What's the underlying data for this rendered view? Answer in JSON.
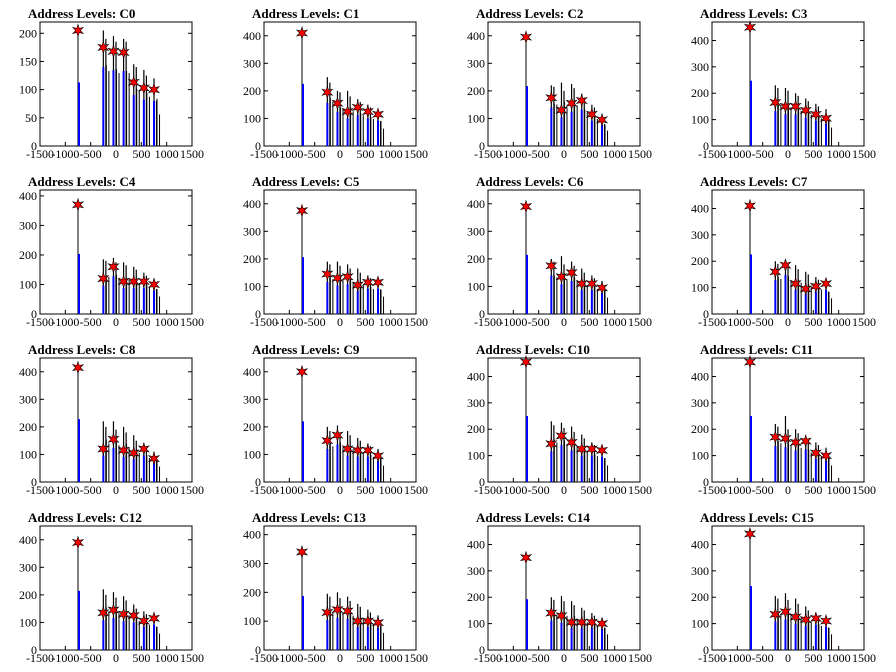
{
  "colors": {
    "histogram_bin": "#000000",
    "histogram_peak": "#0000ff",
    "peak_marker": "#ff0000",
    "axes": "#000000"
  },
  "chart_data": [
    {
      "type": "bar",
      "title": "Address Levels: C0",
      "xlim": [
        -1500,
        1500
      ],
      "xticks": [
        -1500,
        -1000,
        -500,
        0,
        500,
        1000,
        1500
      ],
      "ylim": [
        0,
        220
      ],
      "yticks": [
        0,
        50,
        100,
        150,
        200
      ],
      "peaks": {
        "x": [
          -750,
          -250,
          -50,
          150,
          350,
          550,
          750
        ],
        "y": [
          205,
          175,
          168,
          166,
          113,
          103,
          100
        ]
      },
      "bins": {
        "x": [
          -250,
          -200,
          -50,
          0,
          150,
          200,
          350,
          400,
          550,
          600,
          750,
          800
        ],
        "y": [
          205,
          190,
          195,
          185,
          190,
          185,
          145,
          140,
          135,
          125,
          120,
          80
        ]
      }
    },
    {
      "type": "bar",
      "title": "Address Levels: C1",
      "xlim": [
        -1500,
        1500
      ],
      "xticks": [
        -1500,
        -1000,
        -500,
        0,
        500,
        1000,
        1500
      ],
      "ylim": [
        0,
        450
      ],
      "yticks": [
        0,
        100,
        200,
        300,
        400
      ],
      "peaks": {
        "x": [
          -750,
          -250,
          -50,
          150,
          350,
          550,
          750
        ],
        "y": [
          410,
          195,
          155,
          125,
          140,
          125,
          115
        ]
      },
      "bins": {
        "x": [
          -250,
          -200,
          -50,
          0,
          150,
          200,
          350,
          400,
          550,
          600,
          750,
          800
        ],
        "y": [
          250,
          230,
          200,
          195,
          200,
          180,
          170,
          160,
          150,
          140,
          130,
          90
        ]
      }
    },
    {
      "type": "bar",
      "title": "Address Levels: C2",
      "xlim": [
        -1500,
        1500
      ],
      "xticks": [
        -1500,
        -1000,
        -500,
        0,
        500,
        1000,
        1500
      ],
      "ylim": [
        0,
        450
      ],
      "yticks": [
        0,
        100,
        200,
        300,
        400
      ],
      "peaks": {
        "x": [
          -750,
          -250,
          -50,
          150,
          350,
          550,
          750
        ],
        "y": [
          395,
          175,
          130,
          155,
          165,
          115,
          95
        ]
      },
      "bins": {
        "x": [
          -250,
          -200,
          -50,
          0,
          150,
          200,
          350,
          400,
          550,
          600,
          750,
          800
        ],
        "y": [
          220,
          215,
          230,
          200,
          225,
          210,
          190,
          175,
          150,
          140,
          110,
          80
        ]
      }
    },
    {
      "type": "bar",
      "title": "Address Levels: C3",
      "xlim": [
        -1500,
        1500
      ],
      "xticks": [
        -1500,
        -1000,
        -500,
        0,
        500,
        1000,
        1500
      ],
      "ylim": [
        0,
        470
      ],
      "yticks": [
        0,
        100,
        200,
        300,
        400
      ],
      "peaks": {
        "x": [
          -750,
          -250,
          -50,
          150,
          350,
          550,
          750
        ],
        "y": [
          450,
          165,
          150,
          150,
          135,
          120,
          105
        ]
      },
      "bins": {
        "x": [
          -250,
          -200,
          -50,
          0,
          150,
          200,
          350,
          400,
          550,
          600,
          750,
          800
        ],
        "y": [
          230,
          220,
          220,
          210,
          200,
          190,
          180,
          170,
          160,
          150,
          140,
          100
        ]
      }
    },
    {
      "type": "bar",
      "title": "Address Levels: C4",
      "xlim": [
        -1500,
        1500
      ],
      "xticks": [
        -1500,
        -1000,
        -500,
        0,
        500,
        1000,
        1500
      ],
      "ylim": [
        0,
        420
      ],
      "yticks": [
        0,
        100,
        200,
        300,
        400
      ],
      "peaks": {
        "x": [
          -750,
          -250,
          -50,
          150,
          350,
          550,
          750
        ],
        "y": [
          370,
          120,
          160,
          110,
          110,
          110,
          100
        ]
      },
      "bins": {
        "x": [
          -250,
          -200,
          -50,
          0,
          150,
          200,
          350,
          400,
          550,
          600,
          750,
          800
        ],
        "y": [
          185,
          180,
          190,
          175,
          175,
          165,
          160,
          150,
          140,
          130,
          120,
          85
        ]
      }
    },
    {
      "type": "bar",
      "title": "Address Levels: C5",
      "xlim": [
        -1500,
        1500
      ],
      "xticks": [
        -1500,
        -1000,
        -500,
        0,
        500,
        1000,
        1500
      ],
      "ylim": [
        0,
        450
      ],
      "yticks": [
        0,
        100,
        200,
        300,
        400
      ],
      "peaks": {
        "x": [
          -750,
          -250,
          -50,
          150,
          350,
          550,
          750
        ],
        "y": [
          375,
          145,
          130,
          135,
          105,
          115,
          115
        ]
      },
      "bins": {
        "x": [
          -250,
          -200,
          -50,
          0,
          150,
          200,
          350,
          400,
          550,
          600,
          750,
          800
        ],
        "y": [
          190,
          180,
          190,
          175,
          180,
          165,
          165,
          150,
          140,
          130,
          125,
          90
        ]
      }
    },
    {
      "type": "bar",
      "title": "Address Levels: C6",
      "xlim": [
        -1500,
        1500
      ],
      "xticks": [
        -1500,
        -1000,
        -500,
        0,
        500,
        1000,
        1500
      ],
      "ylim": [
        0,
        450
      ],
      "yticks": [
        0,
        100,
        200,
        300,
        400
      ],
      "peaks": {
        "x": [
          -750,
          -250,
          -50,
          150,
          350,
          550,
          750
        ],
        "y": [
          390,
          175,
          135,
          150,
          110,
          110,
          95
        ]
      },
      "bins": {
        "x": [
          -250,
          -200,
          -50,
          0,
          150,
          200,
          350,
          400,
          550,
          600,
          750,
          800
        ],
        "y": [
          200,
          190,
          210,
          180,
          190,
          175,
          165,
          150,
          140,
          130,
          120,
          85
        ]
      }
    },
    {
      "type": "bar",
      "title": "Address Levels: C7",
      "xlim": [
        -1500,
        1500
      ],
      "xticks": [
        -1500,
        -1000,
        -500,
        0,
        500,
        1000,
        1500
      ],
      "ylim": [
        0,
        470
      ],
      "yticks": [
        0,
        100,
        200,
        300,
        400
      ],
      "peaks": {
        "x": [
          -750,
          -250,
          -50,
          150,
          350,
          550,
          750
        ],
        "y": [
          410,
          160,
          185,
          115,
          95,
          105,
          115
        ]
      },
      "bins": {
        "x": [
          -250,
          -200,
          -50,
          0,
          150,
          200,
          350,
          400,
          550,
          600,
          750,
          800
        ],
        "y": [
          200,
          190,
          205,
          185,
          185,
          170,
          160,
          150,
          140,
          130,
          120,
          85
        ]
      }
    },
    {
      "type": "bar",
      "title": "Address Levels: C8",
      "xlim": [
        -1500,
        1500
      ],
      "xticks": [
        -1500,
        -1000,
        -500,
        0,
        500,
        1000,
        1500
      ],
      "ylim": [
        0,
        450
      ],
      "yticks": [
        0,
        100,
        200,
        300,
        400
      ],
      "peaks": {
        "x": [
          -750,
          -250,
          -50,
          150,
          350,
          550,
          750
        ],
        "y": [
          415,
          120,
          155,
          115,
          105,
          120,
          85
        ]
      },
      "bins": {
        "x": [
          -250,
          -200,
          -50,
          0,
          150,
          200,
          350,
          400,
          550,
          600,
          750,
          800
        ],
        "y": [
          220,
          200,
          220,
          190,
          200,
          180,
          170,
          150,
          140,
          125,
          110,
          80
        ]
      }
    },
    {
      "type": "bar",
      "title": "Address Levels: C9",
      "xlim": [
        -1500,
        1500
      ],
      "xticks": [
        -1500,
        -1000,
        -500,
        0,
        500,
        1000,
        1500
      ],
      "ylim": [
        0,
        450
      ],
      "yticks": [
        0,
        100,
        200,
        300,
        400
      ],
      "peaks": {
        "x": [
          -750,
          -250,
          -50,
          150,
          350,
          550,
          750
        ],
        "y": [
          400,
          150,
          170,
          120,
          115,
          115,
          95
        ]
      },
      "bins": {
        "x": [
          -250,
          -200,
          -50,
          0,
          150,
          200,
          350,
          400,
          550,
          600,
          750,
          800
        ],
        "y": [
          200,
          185,
          205,
          180,
          185,
          170,
          160,
          150,
          140,
          130,
          120,
          85
        ]
      }
    },
    {
      "type": "bar",
      "title": "Address Levels: C10",
      "xlim": [
        -1500,
        1500
      ],
      "xticks": [
        -1500,
        -1000,
        -500,
        0,
        500,
        1000,
        1500
      ],
      "ylim": [
        0,
        470
      ],
      "yticks": [
        0,
        100,
        200,
        300,
        400
      ],
      "peaks": {
        "x": [
          -750,
          -250,
          -50,
          150,
          350,
          550,
          750
        ],
        "y": [
          455,
          145,
          175,
          150,
          125,
          125,
          120
        ]
      },
      "bins": {
        "x": [
          -250,
          -200,
          -50,
          0,
          150,
          200,
          350,
          400,
          550,
          600,
          750,
          800
        ],
        "y": [
          230,
          215,
          225,
          205,
          210,
          190,
          180,
          165,
          150,
          140,
          130,
          90
        ]
      }
    },
    {
      "type": "bar",
      "title": "Address Levels: C11",
      "xlim": [
        -1500,
        1500
      ],
      "xticks": [
        -1500,
        -1000,
        -500,
        0,
        500,
        1000,
        1500
      ],
      "ylim": [
        0,
        470
      ],
      "yticks": [
        0,
        100,
        200,
        300,
        400
      ],
      "peaks": {
        "x": [
          -750,
          -250,
          -50,
          150,
          350,
          550,
          750
        ],
        "y": [
          455,
          170,
          165,
          150,
          155,
          110,
          100
        ]
      },
      "bins": {
        "x": [
          -250,
          -200,
          -50,
          0,
          150,
          200,
          350,
          400,
          550,
          600,
          750,
          800
        ],
        "y": [
          220,
          210,
          250,
          200,
          200,
          185,
          175,
          160,
          150,
          140,
          130,
          90
        ]
      }
    },
    {
      "type": "bar",
      "title": "Address Levels: C12",
      "xlim": [
        -1500,
        1500
      ],
      "xticks": [
        -1500,
        -1000,
        -500,
        0,
        500,
        1000,
        1500
      ],
      "ylim": [
        0,
        450
      ],
      "yticks": [
        0,
        100,
        200,
        300,
        400
      ],
      "peaks": {
        "x": [
          -750,
          -250,
          -50,
          150,
          350,
          550,
          750
        ],
        "y": [
          390,
          135,
          145,
          130,
          125,
          105,
          115
        ]
      },
      "bins": {
        "x": [
          -250,
          -200,
          -50,
          0,
          150,
          200,
          350,
          400,
          550,
          600,
          750,
          800
        ],
        "y": [
          220,
          200,
          210,
          190,
          195,
          180,
          165,
          150,
          140,
          130,
          120,
          85
        ]
      }
    },
    {
      "type": "bar",
      "title": "Address Levels: C13",
      "xlim": [
        -1500,
        1500
      ],
      "xticks": [
        -1500,
        -1000,
        -500,
        0,
        500,
        1000,
        1500
      ],
      "ylim": [
        0,
        430
      ],
      "yticks": [
        0,
        100,
        200,
        300,
        400
      ],
      "peaks": {
        "x": [
          -750,
          -250,
          -50,
          150,
          350,
          550,
          750
        ],
        "y": [
          340,
          130,
          140,
          135,
          100,
          100,
          95
        ]
      },
      "bins": {
        "x": [
          -250,
          -200,
          -50,
          0,
          150,
          200,
          350,
          400,
          550,
          600,
          750,
          800
        ],
        "y": [
          195,
          185,
          200,
          180,
          185,
          170,
          160,
          150,
          140,
          130,
          120,
          85
        ]
      }
    },
    {
      "type": "bar",
      "title": "Address Levels: C14",
      "xlim": [
        -1500,
        1500
      ],
      "xticks": [
        -1500,
        -1000,
        -500,
        0,
        500,
        1000,
        1500
      ],
      "ylim": [
        0,
        470
      ],
      "yticks": [
        0,
        100,
        200,
        300,
        400
      ],
      "peaks": {
        "x": [
          -750,
          -250,
          -50,
          150,
          350,
          550,
          750
        ],
        "y": [
          350,
          140,
          130,
          105,
          105,
          105,
          100
        ]
      },
      "bins": {
        "x": [
          -250,
          -200,
          -50,
          0,
          150,
          200,
          350,
          400,
          550,
          600,
          750,
          800
        ],
        "y": [
          200,
          190,
          205,
          185,
          185,
          170,
          160,
          150,
          140,
          130,
          120,
          85
        ]
      }
    },
    {
      "type": "bar",
      "title": "Address Levels: C15",
      "xlim": [
        -1500,
        1500
      ],
      "xticks": [
        -1500,
        -1000,
        -500,
        0,
        500,
        1000,
        1500
      ],
      "ylim": [
        0,
        470
      ],
      "yticks": [
        0,
        100,
        200,
        300,
        400
      ],
      "peaks": {
        "x": [
          -750,
          -250,
          -50,
          150,
          350,
          550,
          750
        ],
        "y": [
          440,
          135,
          145,
          125,
          115,
          120,
          110
        ]
      },
      "bins": {
        "x": [
          -250,
          -200,
          -50,
          0,
          150,
          200,
          350,
          400,
          550,
          600,
          750,
          800
        ],
        "y": [
          205,
          195,
          215,
          190,
          195,
          175,
          165,
          150,
          140,
          130,
          120,
          85
        ]
      }
    }
  ]
}
